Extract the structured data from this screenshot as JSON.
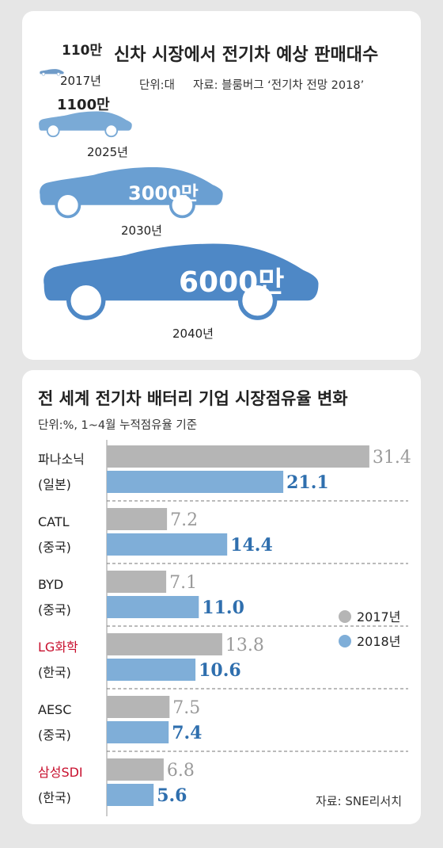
{
  "chart_data": [
    {
      "type": "pictograph",
      "title": "신차 시장에서 전기차 예상 판매대수",
      "unit_label": "단위:대",
      "source": "자료: 블룸버그 ‘전기차 전망 2018’",
      "categories": [
        "2017년",
        "2025년",
        "2030년",
        "2040년"
      ],
      "values": [
        110,
        1100,
        3000,
        6000
      ],
      "value_labels": [
        "110만",
        "1100만",
        "3000만",
        "6000만"
      ],
      "colors": [
        "#6f9bc8",
        "#7aaad6",
        "#6a9fd2",
        "#4e88c6"
      ]
    },
    {
      "type": "bar",
      "title": "전 세계 전기차 배터리 기업 시장점유율 변화",
      "unit_label": "단위:%, 1~4월 누적점유율 기준",
      "source": "자료: SNE리서치",
      "categories": [
        {
          "name": "파나소닉",
          "country": "(일본)",
          "highlight": false
        },
        {
          "name": "CATL",
          "country": "(중국)",
          "highlight": false
        },
        {
          "name": "BYD",
          "country": "(중국)",
          "highlight": false
        },
        {
          "name": "LG화학",
          "country": "(한국)",
          "highlight": true
        },
        {
          "name": "AESC",
          "country": "(중국)",
          "highlight": false
        },
        {
          "name": "삼성SDI",
          "country": "(한국)",
          "highlight": true
        }
      ],
      "series": [
        {
          "name": "2017년",
          "values": [
            31.4,
            7.2,
            7.1,
            13.8,
            7.5,
            6.8
          ],
          "labels": [
            "31.4",
            "7.2",
            "7.1",
            "13.8",
            "7.5",
            "6.8"
          ],
          "color": "#b5b5b5",
          "label_color": "#9a9a9a"
        },
        {
          "name": "2018년",
          "values": [
            21.1,
            14.4,
            11.0,
            10.6,
            7.4,
            5.6
          ],
          "labels": [
            "21.1",
            "14.4",
            "11.0",
            "10.6",
            "7.4",
            "5.6"
          ],
          "color": "#7faed8",
          "label_color": "#2f6fae"
        }
      ],
      "legend_position": "right",
      "highlight_color": "#c8102e"
    }
  ]
}
